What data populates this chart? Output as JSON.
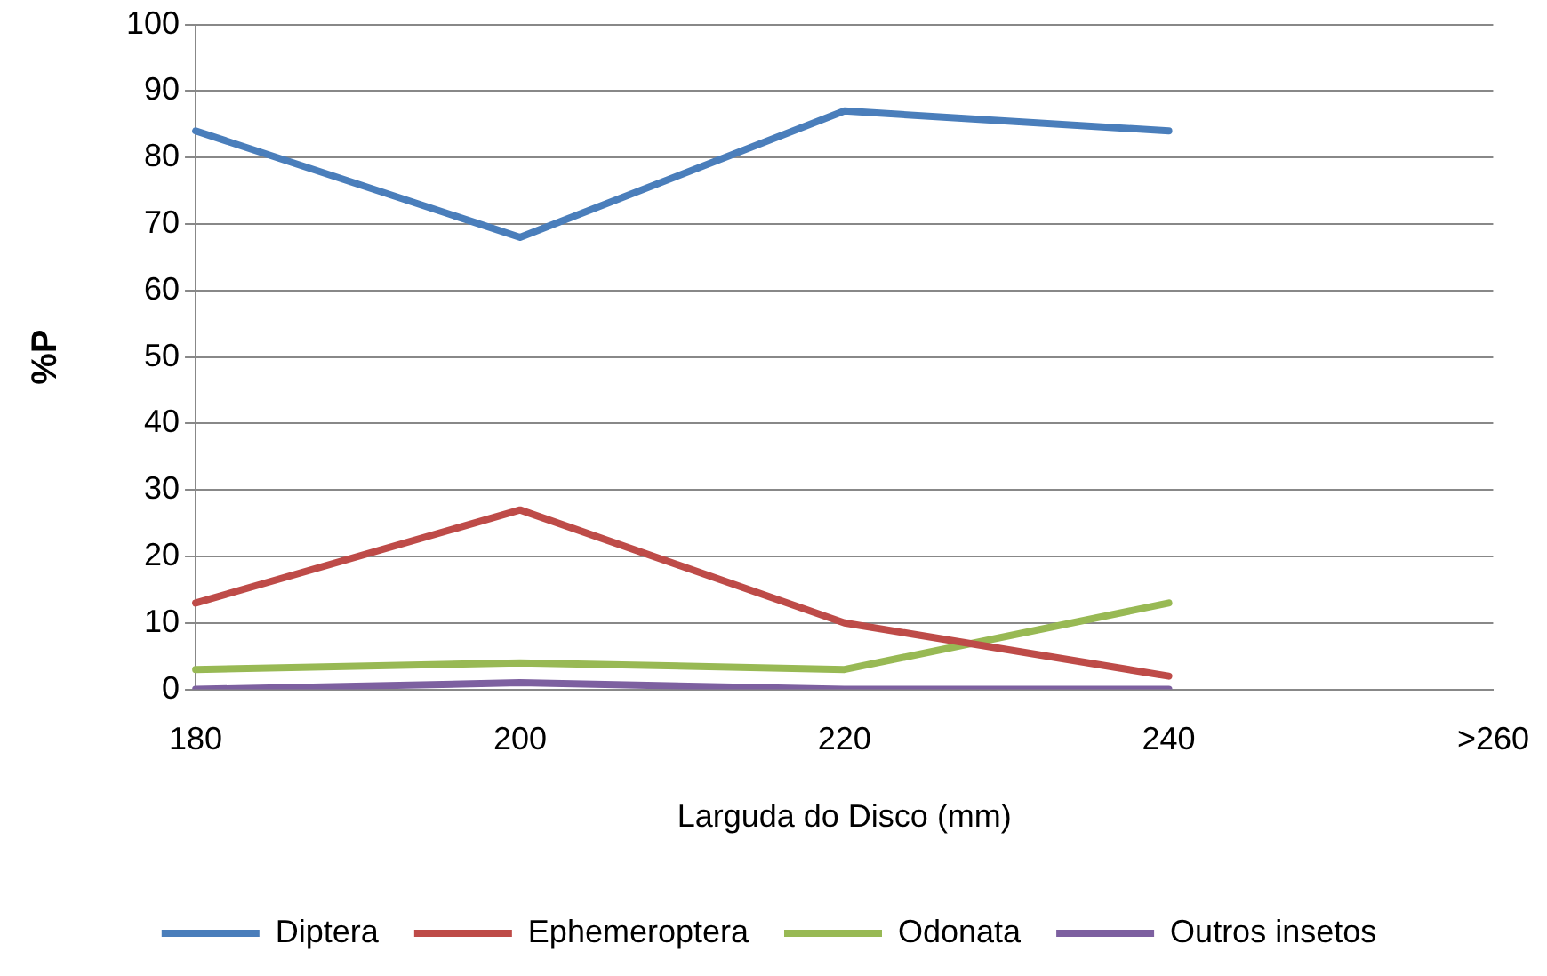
{
  "chart_data": {
    "type": "line",
    "xlabel": "Larguda do Disco (mm)",
    "ylabel": "%P",
    "categories": [
      "180",
      "200",
      "220",
      "240",
      ">260"
    ],
    "series": [
      {
        "name": "Diptera",
        "color": "#4a7ebb",
        "values": [
          84,
          68,
          87,
          84,
          null
        ]
      },
      {
        "name": "Ephemeroptera",
        "color": "#be4b48",
        "values": [
          13,
          27,
          10,
          2,
          null
        ]
      },
      {
        "name": "Odonata",
        "color": "#98b954",
        "values": [
          3,
          4,
          3,
          13,
          null
        ]
      },
      {
        "name": "Outros insetos",
        "color": "#7d60a0",
        "values": [
          0,
          1,
          0,
          0,
          null
        ]
      }
    ],
    "ylim": [
      0,
      100
    ],
    "yticks": [
      0,
      10,
      20,
      30,
      40,
      50,
      60,
      70,
      80,
      90,
      100
    ],
    "grid": "y",
    "legend": "bottom",
    "marker": "none",
    "line_style": "solid"
  }
}
